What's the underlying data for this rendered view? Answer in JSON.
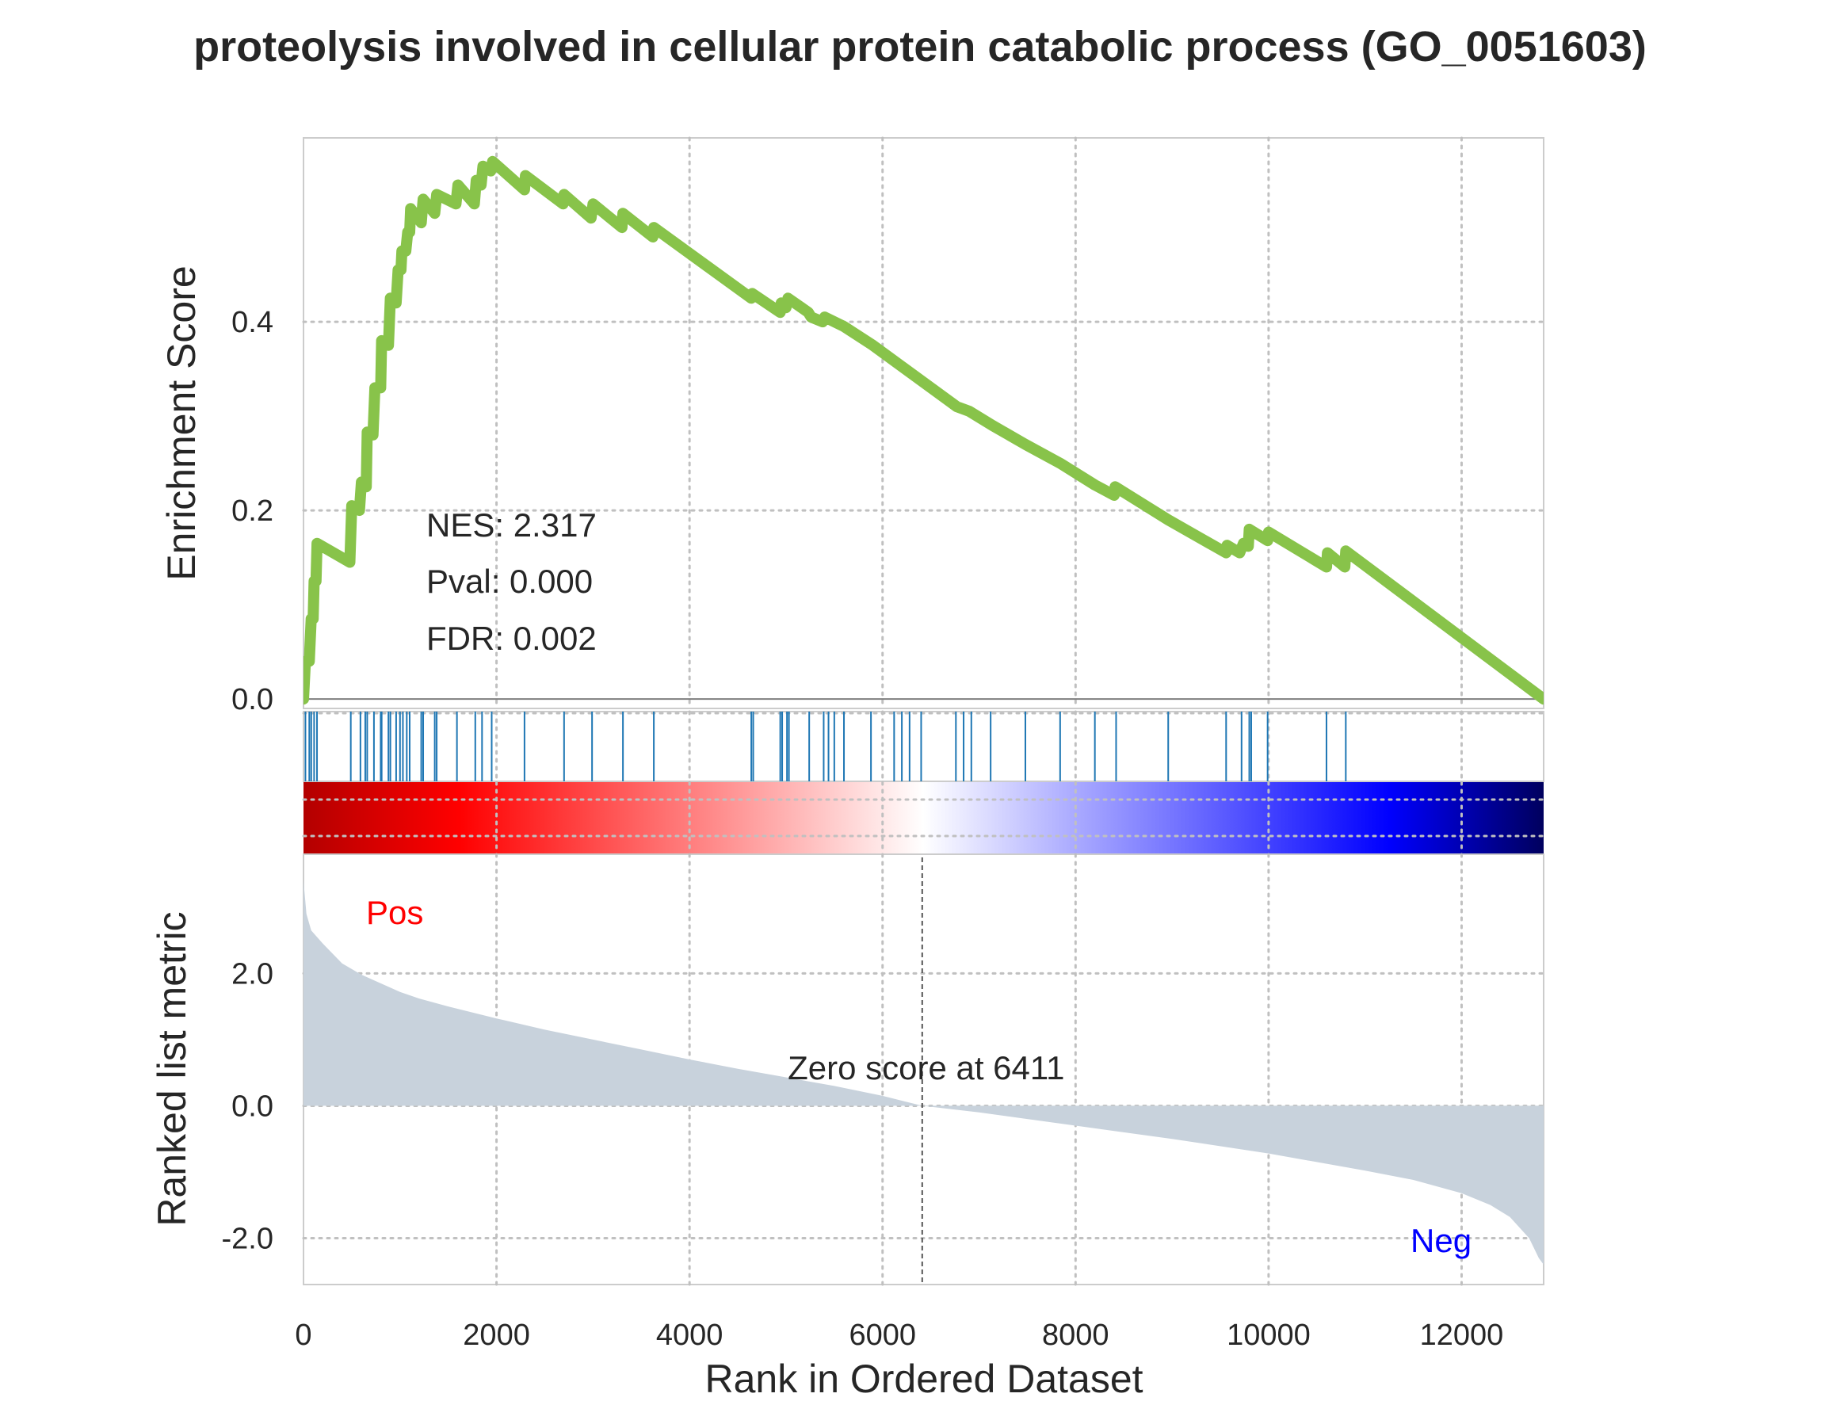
{
  "chart_data": {
    "type": "line",
    "title": "proteolysis involved in cellular protein catabolic process (GO_0051603)",
    "xlabel": "Rank in Ordered Dataset",
    "x_ticks": [
      "0",
      "2000",
      "4000",
      "6000",
      "8000",
      "10000",
      "12000"
    ],
    "xlim": [
      0,
      12850
    ],
    "grid": true,
    "colors": {
      "es_line": "#88c34a",
      "hits": "#1f77b4",
      "ranked_fill": "#c8d2dc",
      "pos_label": "#ff0000",
      "neg_label": "#0000ff",
      "text": "#262626",
      "gradient": [
        "#b30000",
        "#ff0000",
        "#ff5555",
        "#ffa8a8",
        "#ffffff",
        "#a8a8ff",
        "#5555ff",
        "#0000ff",
        "#00005e"
      ]
    },
    "enrichment": {
      "ylabel": "Enrichment Score",
      "y_ticks": [
        "0.0",
        "0.2",
        "0.4"
      ],
      "ylim": [
        -0.01,
        0.595
      ],
      "stats": [
        "NES: 2.317",
        "Pval: 0.000",
        "FDR: 0.002"
      ],
      "points": [
        [
          0,
          0.0
        ],
        [
          20,
          0.04
        ],
        [
          60,
          0.04
        ],
        [
          80,
          0.085
        ],
        [
          100,
          0.085
        ],
        [
          110,
          0.125
        ],
        [
          130,
          0.125
        ],
        [
          140,
          0.165
        ],
        [
          480,
          0.145
        ],
        [
          500,
          0.205
        ],
        [
          580,
          0.2
        ],
        [
          600,
          0.23
        ],
        [
          650,
          0.225
        ],
        [
          660,
          0.283
        ],
        [
          720,
          0.28
        ],
        [
          740,
          0.33
        ],
        [
          800,
          0.33
        ],
        [
          810,
          0.38
        ],
        [
          880,
          0.375
        ],
        [
          900,
          0.425
        ],
        [
          960,
          0.42
        ],
        [
          980,
          0.455
        ],
        [
          1010,
          0.455
        ],
        [
          1020,
          0.475
        ],
        [
          1060,
          0.475
        ],
        [
          1080,
          0.495
        ],
        [
          1100,
          0.495
        ],
        [
          1110,
          0.52
        ],
        [
          1220,
          0.505
        ],
        [
          1240,
          0.53
        ],
        [
          1360,
          0.515
        ],
        [
          1380,
          0.535
        ],
        [
          1580,
          0.525
        ],
        [
          1600,
          0.545
        ],
        [
          1770,
          0.525
        ],
        [
          1790,
          0.55
        ],
        [
          1840,
          0.545
        ],
        [
          1860,
          0.565
        ],
        [
          1940,
          0.56
        ],
        [
          1960,
          0.57
        ],
        [
          2290,
          0.54
        ],
        [
          2300,
          0.555
        ],
        [
          2690,
          0.525
        ],
        [
          2700,
          0.535
        ],
        [
          2980,
          0.51
        ],
        [
          3000,
          0.525
        ],
        [
          3300,
          0.5
        ],
        [
          3310,
          0.515
        ],
        [
          3620,
          0.49
        ],
        [
          3630,
          0.5
        ],
        [
          4640,
          0.425
        ],
        [
          4650,
          0.43
        ],
        [
          4940,
          0.41
        ],
        [
          4950,
          0.42
        ],
        [
          5000,
          0.415
        ],
        [
          5020,
          0.425
        ],
        [
          5230,
          0.41
        ],
        [
          5260,
          0.405
        ],
        [
          5380,
          0.4
        ],
        [
          5400,
          0.405
        ],
        [
          5600,
          0.395
        ],
        [
          5900,
          0.375
        ],
        [
          6770,
          0.31
        ],
        [
          6900,
          0.305
        ],
        [
          7140,
          0.29
        ],
        [
          7480,
          0.27
        ],
        [
          7840,
          0.25
        ],
        [
          8200,
          0.227
        ],
        [
          8400,
          0.216
        ],
        [
          8410,
          0.225
        ],
        [
          8960,
          0.19
        ],
        [
          9560,
          0.155
        ],
        [
          9570,
          0.163
        ],
        [
          9700,
          0.155
        ],
        [
          9740,
          0.165
        ],
        [
          9790,
          0.162
        ],
        [
          9800,
          0.18
        ],
        [
          9990,
          0.168
        ],
        [
          10000,
          0.177
        ],
        [
          10600,
          0.14
        ],
        [
          10610,
          0.155
        ],
        [
          10790,
          0.14
        ],
        [
          10800,
          0.157
        ],
        [
          12850,
          0.0
        ]
      ]
    },
    "hits": [
      20,
      60,
      80,
      110,
      140,
      490,
      590,
      640,
      660,
      730,
      800,
      810,
      880,
      900,
      960,
      1000,
      1030,
      1070,
      1100,
      1220,
      1240,
      1360,
      1380,
      1590,
      1780,
      1850,
      1950,
      2290,
      2700,
      2990,
      3310,
      3630,
      4640,
      4660,
      4940,
      4960,
      5010,
      5030,
      5240,
      5390,
      5440,
      5500,
      5600,
      5880,
      6120,
      6200,
      6280,
      6400,
      6760,
      6840,
      6920,
      7120,
      7480,
      7840,
      8200,
      8420,
      8960,
      9560,
      9720,
      9800,
      9820,
      9990,
      10600,
      10800
    ],
    "ranked": {
      "ylabel": "Ranked list metric",
      "y_ticks": [
        "2.0",
        "0.0",
        "-2.0"
      ],
      "ylim": [
        -2.7,
        3.8
      ],
      "pos_label": "Pos",
      "neg_label": "Neg",
      "zero_cross": 6411,
      "zero_label": "Zero score at 6411",
      "points": [
        [
          0,
          3.4
        ],
        [
          30,
          2.9
        ],
        [
          80,
          2.65
        ],
        [
          200,
          2.45
        ],
        [
          400,
          2.15
        ],
        [
          600,
          1.98
        ],
        [
          800,
          1.85
        ],
        [
          1000,
          1.72
        ],
        [
          1200,
          1.62
        ],
        [
          1500,
          1.5
        ],
        [
          2000,
          1.32
        ],
        [
          2500,
          1.15
        ],
        [
          3000,
          1.0
        ],
        [
          3500,
          0.85
        ],
        [
          4000,
          0.7
        ],
        [
          4500,
          0.56
        ],
        [
          5000,
          0.43
        ],
        [
          5500,
          0.3
        ],
        [
          6000,
          0.15
        ],
        [
          6411,
          0.0
        ],
        [
          7000,
          -0.1
        ],
        [
          8000,
          -0.3
        ],
        [
          9000,
          -0.5
        ],
        [
          10000,
          -0.72
        ],
        [
          11000,
          -0.98
        ],
        [
          11500,
          -1.12
        ],
        [
          12000,
          -1.32
        ],
        [
          12300,
          -1.5
        ],
        [
          12500,
          -1.68
        ],
        [
          12700,
          -2.0
        ],
        [
          12800,
          -2.3
        ],
        [
          12850,
          -2.4
        ]
      ]
    }
  }
}
